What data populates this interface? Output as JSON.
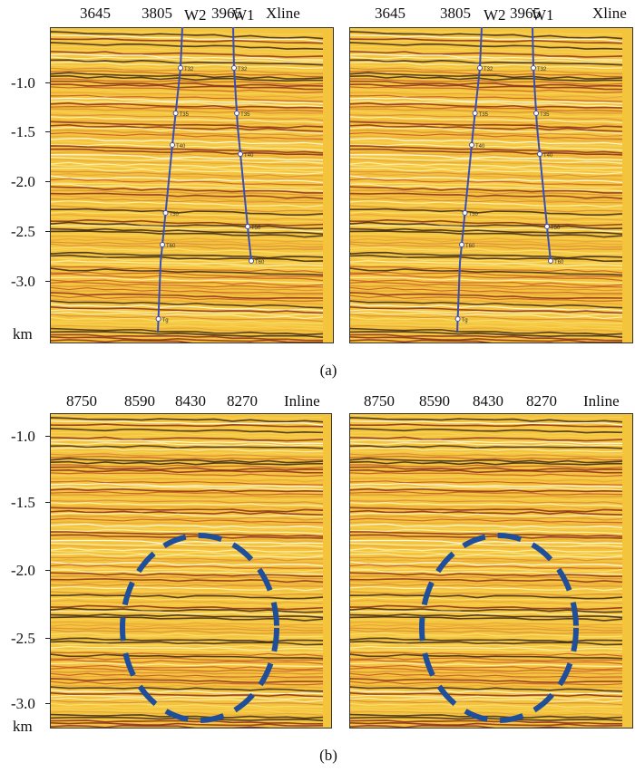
{
  "figure": {
    "a": {
      "caption": "(a)",
      "x_ticks": [
        "3645",
        "3805",
        "3965",
        "Xline"
      ],
      "wells": [
        "W2",
        "W1"
      ],
      "y_ticks": [
        "-1.0",
        "-1.5",
        "-2.0",
        "-2.5",
        "-3.0"
      ],
      "y_unit": "km",
      "horizons": [
        "T32",
        "T35",
        "T40",
        "T50",
        "T60",
        "Tg"
      ]
    },
    "b": {
      "caption": "(b)",
      "x_ticks": [
        "8750",
        "8590",
        "8430",
        "8270",
        "Inline"
      ],
      "y_ticks": [
        "-1.0",
        "-1.5",
        "-2.0",
        "-2.5",
        "-3.0"
      ],
      "y_unit": "km"
    },
    "colors": {
      "seismic_base": "#f4c53c",
      "highlight_ellipse": "#1f4e9a",
      "well_track": "#3a4fb5"
    }
  }
}
